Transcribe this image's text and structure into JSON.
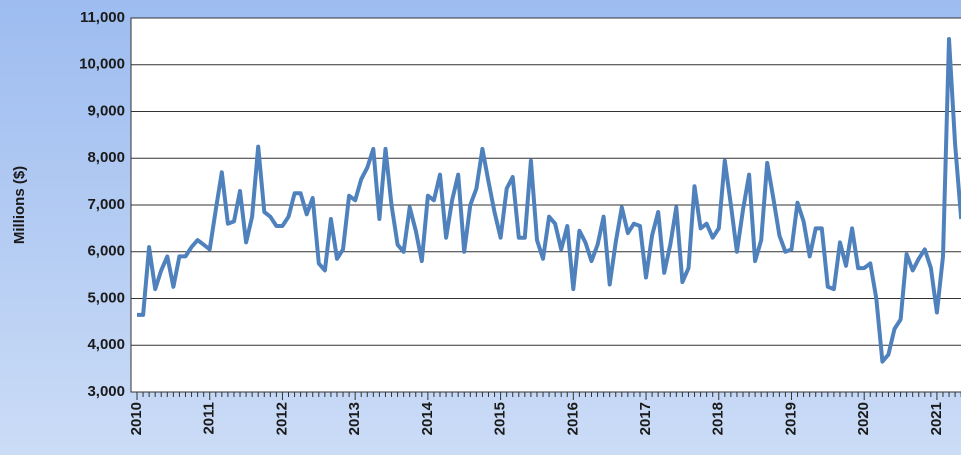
{
  "chart_data": {
    "type": "line",
    "y_label": "Millions ($)",
    "categories": [
      "2010",
      null,
      null,
      null,
      null,
      null,
      null,
      null,
      null,
      null,
      null,
      null,
      "2011",
      null,
      null,
      null,
      null,
      null,
      null,
      null,
      null,
      null,
      null,
      null,
      "2012",
      null,
      null,
      null,
      null,
      null,
      null,
      null,
      null,
      null,
      null,
      null,
      "2013",
      null,
      null,
      null,
      null,
      null,
      null,
      null,
      null,
      null,
      null,
      null,
      "2014",
      null,
      null,
      null,
      null,
      null,
      null,
      null,
      null,
      null,
      null,
      null,
      "2015",
      null,
      null,
      null,
      null,
      null,
      null,
      null,
      null,
      null,
      null,
      null,
      "2016",
      null,
      null,
      null,
      null,
      null,
      null,
      null,
      null,
      null,
      null,
      null,
      "2017",
      null,
      null,
      null,
      null,
      null,
      null,
      null,
      null,
      null,
      null,
      null,
      "2018",
      null,
      null,
      null,
      null,
      null,
      null,
      null,
      null,
      null,
      null,
      null,
      "2019",
      null,
      null,
      null,
      null,
      null,
      null,
      null,
      null,
      null,
      null,
      null,
      "2020",
      null,
      null,
      null,
      null,
      null,
      null,
      null,
      null,
      null,
      null,
      null,
      "2021",
      null,
      null,
      null,
      null
    ],
    "values": [
      4650,
      4650,
      6100,
      5200,
      5600,
      5900,
      5250,
      5900,
      5900,
      6100,
      6250,
      6150,
      6050,
      6900,
      7700,
      6600,
      6650,
      7300,
      6200,
      6750,
      8250,
      6850,
      6750,
      6550,
      6550,
      6750,
      7250,
      7250,
      6800,
      7150,
      5750,
      5600,
      6700,
      5850,
      6050,
      7200,
      7100,
      7550,
      7800,
      8200,
      6700,
      8200,
      7000,
      6150,
      6000,
      6950,
      6450,
      5800,
      7200,
      7100,
      7650,
      6300,
      7100,
      7650,
      6000,
      7000,
      7350,
      8200,
      7500,
      6850,
      6300,
      7350,
      7600,
      6300,
      6300,
      7950,
      6250,
      5850,
      6750,
      6600,
      6050,
      6550,
      5200,
      6450,
      6200,
      5800,
      6150,
      6750,
      5300,
      6200,
      6950,
      6400,
      6600,
      6550,
      5450,
      6350,
      6850,
      5550,
      6150,
      6950,
      5350,
      5650,
      7400,
      6500,
      6600,
      6300,
      6500,
      7950,
      7000,
      6000,
      6900,
      7650,
      5800,
      6250,
      7900,
      7150,
      6350,
      6000,
      6050,
      7050,
      6650,
      5900,
      6500,
      6500,
      5250,
      5200,
      6200,
      5700,
      6500,
      5650,
      5650,
      5750,
      5000,
      3650,
      3800,
      4350,
      4550,
      5950,
      5600,
      5850,
      6050,
      5650,
      4700,
      5900,
      10550,
      8300,
      6700
    ],
    "color": "#4f81bd",
    "ylim": [
      3000,
      11000
    ],
    "yticks": [
      {
        "value": 3000,
        "label": "3,000"
      },
      {
        "value": 4000,
        "label": "4,000"
      },
      {
        "value": 5000,
        "label": "5,000"
      },
      {
        "value": 6000,
        "label": "6,000"
      },
      {
        "value": 7000,
        "label": "7,000"
      },
      {
        "value": 8000,
        "label": "8,000"
      },
      {
        "value": 9000,
        "label": "9,000"
      },
      {
        "value": 10000,
        "label": "10,000"
      },
      {
        "value": 11000,
        "label": "11,000"
      }
    ],
    "grid": true
  }
}
